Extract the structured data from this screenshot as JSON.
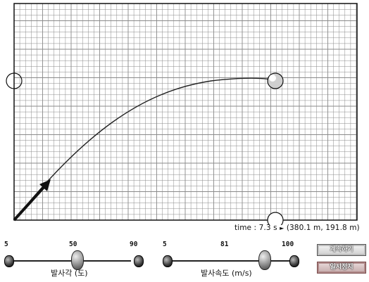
{
  "simulation": {
    "readout_time": "time : 7.3 s",
    "readout_arrow": "►",
    "readout_position": "(380.1 m, 191.8 m)",
    "trajectory_color": "#222222",
    "grid_color": "#8a8a8a",
    "ball_color": "#ffffff"
  },
  "angle_slider": {
    "min": "5",
    "value": "50",
    "max": "90",
    "label": "발사각 (도)"
  },
  "speed_slider": {
    "min": "5",
    "value": "81",
    "max": "100",
    "label": "발사속도 (m/s)"
  },
  "buttons": {
    "continue": "계속하기",
    "pause": "일시정지"
  }
}
